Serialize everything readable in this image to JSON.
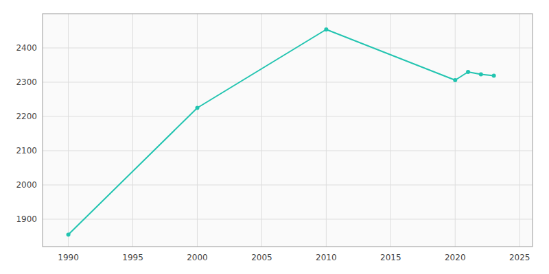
{
  "chart_data": {
    "type": "line",
    "x": [
      1990,
      2000,
      2010,
      2020,
      2021,
      2022,
      2023
    ],
    "values": [
      1855,
      2225,
      2454,
      2306,
      2330,
      2323,
      2319
    ],
    "color": "#22c4b0",
    "marker": "circle",
    "xlim": [
      1988,
      2026
    ],
    "ylim": [
      1820,
      2500
    ],
    "xticks": [
      1990,
      1995,
      2000,
      2005,
      2010,
      2015,
      2020,
      2025
    ],
    "yticks": [
      1900,
      2000,
      2100,
      2200,
      2300,
      2400
    ],
    "grid": true
  }
}
